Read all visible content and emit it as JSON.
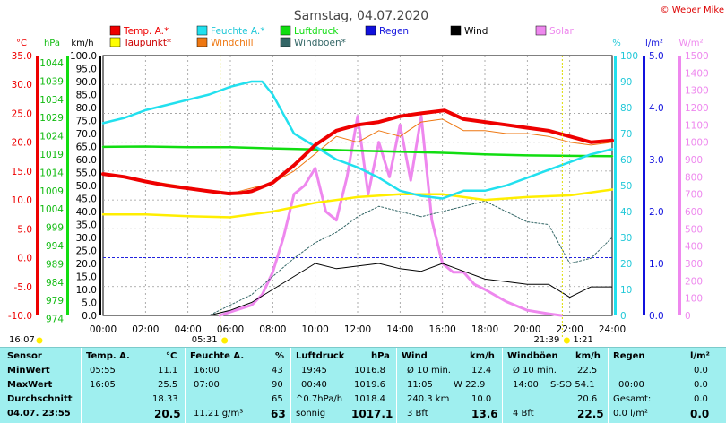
{
  "title": "Samstag, 04.07.2020",
  "copyright": "© Weber Mike",
  "legend": [
    {
      "label": "Temp. A.*",
      "color": "#ee0000"
    },
    {
      "label": "Feuchte A.*",
      "color": "#22e0ee"
    },
    {
      "label": "Luftdruck",
      "color": "#11dd11"
    },
    {
      "label": "Regen",
      "color": "#1111dd"
    },
    {
      "label": "Wind",
      "color": "#000000"
    },
    {
      "label": "Solar",
      "color": "#ee88ee"
    },
    {
      "label": "Taupunkt*",
      "color": "#ffff00"
    },
    {
      "label": "Windchill",
      "color": "#ee7711"
    },
    {
      "label": "Windböen*",
      "color": "#336666"
    }
  ],
  "axis_units": {
    "temp": "°C",
    "pressure": "hPa",
    "wind": "km/h",
    "humidity": "%",
    "rain": "l/m²",
    "solar": "W/m²"
  },
  "axis_ticks": {
    "temp": [
      "35.0",
      "30.0",
      "25.0",
      "20.0",
      "15.0",
      "10.0",
      "5.0",
      "0.0",
      "-5.0",
      "-10.0"
    ],
    "pressure": [
      "1044",
      "1039",
      "1034",
      "1029",
      "1024",
      "1019",
      "1014",
      "1009",
      "1004",
      "999",
      "994",
      "989",
      "984",
      "979",
      "974"
    ],
    "wind": [
      "100.0",
      "95.0",
      "90.0",
      "85.0",
      "80.0",
      "75.0",
      "70.0",
      "65.0",
      "60.0",
      "55.0",
      "50.0",
      "45.0",
      "40.0",
      "35.0",
      "30.0",
      "25.0",
      "20.0",
      "15.0",
      "10.0",
      "5.0",
      "0.0"
    ],
    "humidity": [
      "100",
      "90",
      "80",
      "70",
      "60",
      "50",
      "40",
      "30",
      "20",
      "10",
      "0"
    ],
    "rain": [
      "5.0",
      "4.0",
      "3.0",
      "2.0",
      "1.0",
      "0.0"
    ],
    "solar": [
      "1500",
      "1400",
      "1300",
      "1200",
      "1100",
      "1000",
      "900",
      "800",
      "700",
      "600",
      "500",
      "400",
      "300",
      "200",
      "100",
      "0"
    ],
    "time": [
      "00:00",
      "02:00",
      "04:00",
      "06:00",
      "08:00",
      "10:00",
      "12:00",
      "14:00",
      "16:00",
      "18:00",
      "20:00",
      "22:00",
      "24:00"
    ]
  },
  "sun": {
    "rise_label": "05:31",
    "set_label": "21:39",
    "left_label": "16:07",
    "right_label": "1:21"
  },
  "chart_data": {
    "type": "line",
    "title": "Samstag, 04.07.2020",
    "x_label": "",
    "x_unit": "hour",
    "xlim": [
      0,
      24
    ],
    "series": [
      {
        "name": "Temp. A.*",
        "unit": "°C",
        "x": [
          0,
          1,
          2,
          3,
          4,
          5,
          5.9,
          6.5,
          7,
          8,
          9,
          10,
          11,
          12,
          13,
          14,
          15,
          16.1,
          17,
          18,
          19,
          20,
          21,
          22,
          23,
          24
        ],
        "values": [
          14.5,
          14,
          13.2,
          12.5,
          12,
          11.5,
          11.1,
          11.2,
          11.5,
          13,
          16,
          19.5,
          22,
          23,
          23.5,
          24.5,
          25,
          25.5,
          24,
          23.5,
          23,
          22.5,
          22,
          21,
          20,
          20.3
        ]
      },
      {
        "name": "Feuchte A.*",
        "unit": "%",
        "x": [
          0,
          1,
          2,
          3,
          4,
          5,
          6,
          7,
          7.5,
          8,
          9,
          10,
          11,
          12,
          13,
          14,
          15,
          16,
          17,
          18,
          19,
          20,
          21,
          22,
          23,
          24
        ],
        "values": [
          74,
          76,
          79,
          81,
          83,
          85,
          88,
          90,
          90,
          85,
          70,
          65,
          60,
          57,
          53,
          48,
          46,
          45,
          48,
          48,
          50,
          53,
          56,
          59,
          62,
          64
        ]
      },
      {
        "name": "Luftdruck",
        "unit": "hPa",
        "x": [
          0,
          2,
          4,
          6,
          8,
          10,
          12,
          14,
          16,
          18,
          20,
          22,
          24
        ],
        "values": [
          1019.4,
          1019.5,
          1019.3,
          1019.3,
          1019.0,
          1018.7,
          1018.4,
          1018.1,
          1017.8,
          1017.4,
          1017.1,
          1017.0,
          1016.9
        ]
      },
      {
        "name": "Taupunkt*",
        "unit": "°C",
        "x": [
          0,
          2,
          4,
          6,
          8,
          10,
          12,
          14,
          16,
          18,
          20,
          22,
          24
        ],
        "values": [
          7.5,
          7.5,
          7.2,
          7.0,
          8,
          9.5,
          10.5,
          11,
          11,
          10,
          10.5,
          10.8,
          11.8
        ]
      },
      {
        "name": "Windchill",
        "unit": "°C",
        "x": [
          0,
          6,
          8,
          9,
          10,
          11,
          12,
          13,
          14,
          15,
          16,
          17,
          18,
          19,
          20,
          21,
          22,
          23,
          24
        ],
        "values": [
          14.5,
          11.1,
          13,
          15,
          18,
          21,
          20,
          22,
          21,
          23.5,
          24,
          22,
          22,
          21.5,
          21.5,
          21,
          20,
          19.5,
          20
        ]
      },
      {
        "name": "Wind",
        "unit": "km/h",
        "x": [
          0,
          2,
          4,
          5,
          6,
          7,
          8,
          9,
          10,
          11,
          12,
          13,
          14,
          15,
          16,
          17,
          18,
          19,
          20,
          21,
          22,
          23,
          24
        ],
        "values": [
          0,
          0,
          0,
          0,
          2,
          5,
          10,
          15,
          20,
          18,
          19,
          20,
          18,
          17,
          20,
          17,
          14,
          13,
          12,
          12,
          7,
          11,
          11
        ]
      },
      {
        "name": "Windböen*",
        "unit": "km/h",
        "x": [
          0,
          2,
          4,
          5,
          6,
          7,
          8,
          9,
          10,
          11,
          12,
          13,
          14,
          15,
          16,
          17,
          18,
          19,
          20,
          21,
          22,
          23,
          24
        ],
        "values": [
          0,
          0,
          0,
          0,
          4,
          8,
          15,
          22,
          28,
          32,
          38,
          42,
          40,
          38,
          40,
          42,
          44,
          40,
          36,
          35,
          20,
          22,
          30
        ]
      },
      {
        "name": "Solar",
        "unit": "W/m²",
        "x": [
          5.5,
          6,
          7,
          7.5,
          8,
          8.5,
          9,
          9.5,
          10,
          10.5,
          11,
          11.5,
          12,
          12.5,
          13,
          13.5,
          14,
          14.5,
          15,
          15.5,
          16,
          16.5,
          17,
          17.5,
          18,
          19,
          20,
          21,
          21.6
        ],
        "values": [
          0,
          20,
          60,
          120,
          250,
          450,
          700,
          750,
          850,
          600,
          550,
          800,
          1150,
          700,
          1000,
          800,
          1100,
          780,
          1150,
          550,
          300,
          250,
          250,
          180,
          150,
          80,
          30,
          10,
          0
        ]
      }
    ]
  },
  "table": {
    "sensor_col": {
      "header": "Sensor",
      "rows": [
        "MinWert",
        "MaxWert",
        "Durchschnitt"
      ],
      "date": "04.07. 23:55"
    },
    "temp": {
      "header": "Temp. A.",
      "unit": "°C",
      "rows": [
        [
          "05:55",
          "11.1"
        ],
        [
          "16:05",
          "25.5"
        ],
        [
          "",
          "18.33"
        ]
      ],
      "current": "20.5"
    },
    "humidity": {
      "header": "Feuchte A.",
      "unit": "%",
      "rows": [
        [
          "16:00",
          "43"
        ],
        [
          "07:00",
          "90"
        ],
        [
          "",
          "65"
        ]
      ],
      "extra": "11.21 g/m³",
      "current": "63"
    },
    "pressure": {
      "header": "Luftdruck",
      "unit": "hPa",
      "rows": [
        [
          "19:45",
          "1016.8"
        ],
        [
          "00:40",
          "1019.6"
        ],
        [
          "^0.7hPa/h",
          "1018.4"
        ]
      ],
      "extra": "sonnig",
      "current": "1017.1"
    },
    "wind": {
      "header": "Wind",
      "unit": "km/h",
      "rows": [
        [
          "Ø 10 min.",
          "12.4"
        ],
        [
          "11:05",
          "W 22.9"
        ],
        [
          "240.3 km",
          "10.0"
        ]
      ],
      "extra": "3 Bft",
      "current": "13.6"
    },
    "gust": {
      "header": "Windböen",
      "unit": "km/h",
      "rows": [
        [
          "Ø 10 min.",
          "22.5"
        ],
        [
          "14:00",
          "S-SO 54.1"
        ],
        [
          "",
          "20.6"
        ]
      ],
      "extra": "4 Bft",
      "current": "22.5"
    },
    "rain": {
      "header": "Regen",
      "unit": "l/m²",
      "rows": [
        [
          "",
          "0.0"
        ],
        [
          "00:00",
          "0.0"
        ],
        [
          "Gesamt:",
          "0.0"
        ]
      ],
      "extra": "0.0 l/m²",
      "current": "0.0"
    }
  }
}
